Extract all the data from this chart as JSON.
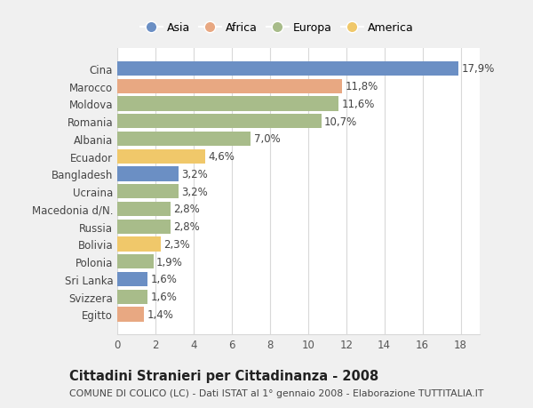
{
  "categories": [
    "Egitto",
    "Svizzera",
    "Sri Lanka",
    "Polonia",
    "Bolivia",
    "Russia",
    "Macedonia d/N.",
    "Ucraina",
    "Bangladesh",
    "Ecuador",
    "Albania",
    "Romania",
    "Moldova",
    "Marocco",
    "Cina"
  ],
  "values": [
    1.4,
    1.6,
    1.6,
    1.9,
    2.3,
    2.8,
    2.8,
    3.2,
    3.2,
    4.6,
    7.0,
    10.7,
    11.6,
    11.8,
    17.9
  ],
  "labels": [
    "1,4%",
    "1,6%",
    "1,6%",
    "1,9%",
    "2,3%",
    "2,8%",
    "2,8%",
    "3,2%",
    "3,2%",
    "4,6%",
    "7,0%",
    "10,7%",
    "11,6%",
    "11,8%",
    "17,9%"
  ],
  "colors": [
    "#e8a882",
    "#a8bc8a",
    "#6b8fc4",
    "#a8bc8a",
    "#f0c86a",
    "#a8bc8a",
    "#a8bc8a",
    "#a8bc8a",
    "#6b8fc4",
    "#f0c86a",
    "#a8bc8a",
    "#a8bc8a",
    "#a8bc8a",
    "#e8a882",
    "#6b8fc4"
  ],
  "legend": [
    {
      "label": "Asia",
      "color": "#6b8fc4"
    },
    {
      "label": "Africa",
      "color": "#e8a882"
    },
    {
      "label": "Europa",
      "color": "#a8bc8a"
    },
    {
      "label": "America",
      "color": "#f0c86a"
    }
  ],
  "xlim": [
    0,
    19
  ],
  "xticks": [
    0,
    2,
    4,
    6,
    8,
    10,
    12,
    14,
    16,
    18
  ],
  "title": "Cittadini Stranieri per Cittadinanza - 2008",
  "subtitle": "COMUNE DI COLICO (LC) - Dati ISTAT al 1° gennaio 2008 - Elaborazione TUTTITALIA.IT",
  "bg_color": "#f0f0f0",
  "plot_bg_color": "#ffffff",
  "grid_color": "#d8d8d8",
  "label_fontsize": 8.5,
  "ytick_fontsize": 8.5,
  "xtick_fontsize": 8.5,
  "title_fontsize": 10.5,
  "subtitle_fontsize": 7.8,
  "bar_height": 0.82
}
